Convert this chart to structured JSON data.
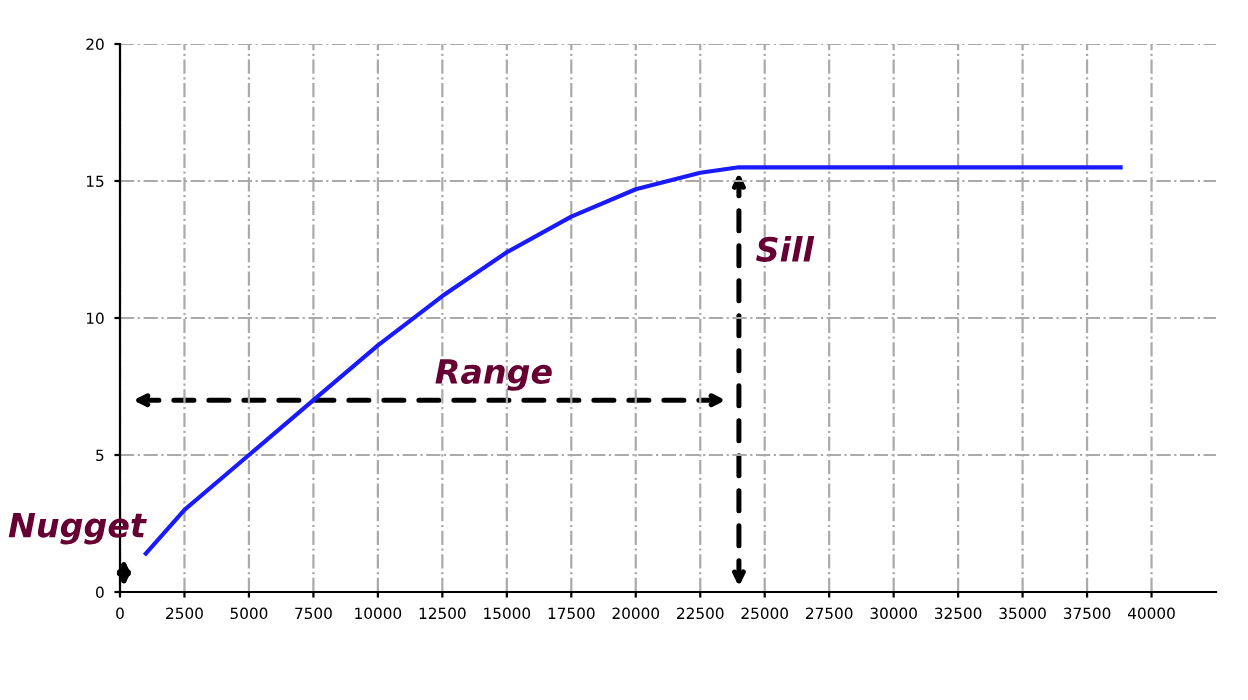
{
  "chart_data": {
    "type": "line",
    "x": [
      1000,
      2500,
      5000,
      7500,
      10000,
      12500,
      15000,
      17500,
      20000,
      22500,
      24000,
      38800
    ],
    "series": [
      {
        "color": "#1a1aff",
        "values": [
          1.4,
          3.0,
          5.0,
          7.0,
          9.0,
          10.8,
          12.4,
          13.7,
          14.7,
          15.3,
          15.5,
          15.5
        ]
      }
    ],
    "xlim": [
      0,
      42500
    ],
    "ylim": [
      0,
      20
    ],
    "xticks": [
      0,
      2500,
      5000,
      7500,
      10000,
      12500,
      15000,
      17500,
      20000,
      22500,
      25000,
      27500,
      30000,
      32500,
      35000,
      37500,
      40000
    ],
    "yticks": [
      0,
      5,
      10,
      15,
      20
    ],
    "grid": true,
    "line_style": "solid",
    "annotations": [
      "Nugget",
      "Range",
      "Sill"
    ]
  }
}
